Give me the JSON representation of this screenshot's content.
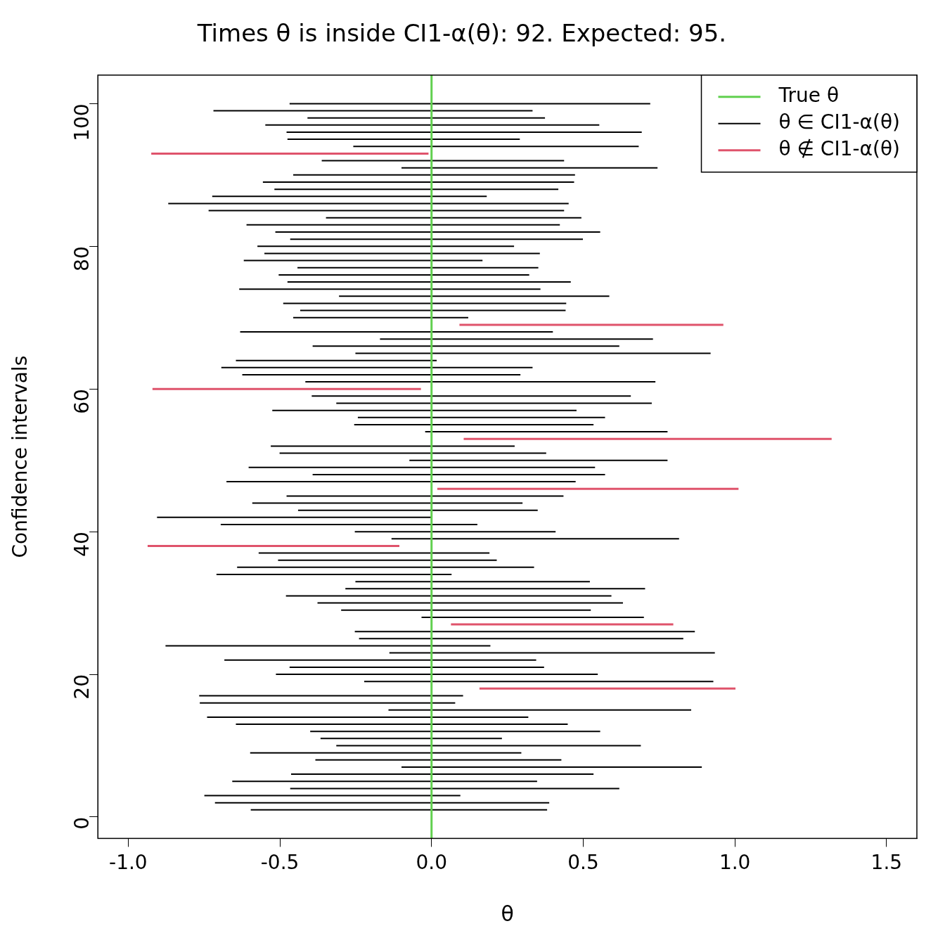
{
  "chart_data": {
    "type": "interval",
    "title": "Times θ is inside CI1-α(θ): 92. Expected: 95.",
    "x_label": "θ",
    "y_label": "Confidence intervals",
    "xlim": [
      -1.1,
      1.6
    ],
    "ylim": [
      -3,
      104
    ],
    "xticks": [
      {
        "value": -1,
        "label": "-1.0"
      },
      {
        "value": -0.5,
        "label": "-0.5"
      },
      {
        "value": 0,
        "label": "0.0"
      },
      {
        "value": 0.5,
        "label": "0.5"
      },
      {
        "value": 1,
        "label": "1.0"
      },
      {
        "value": 1.5,
        "label": "1.5"
      }
    ],
    "yticks": [
      0,
      20,
      40,
      60,
      80,
      100
    ],
    "grid": false,
    "legend": "top-right",
    "reference": {
      "name": "True θ",
      "color": "#61D04F",
      "value": 0
    },
    "series": [
      {
        "name": "θ ∈ CI1-α(θ)",
        "color": "#000000",
        "y": [
          1,
          2,
          3,
          4,
          5,
          6,
          7,
          8,
          9,
          10,
          11,
          12,
          13,
          14,
          15,
          16,
          17,
          19,
          20,
          21,
          22,
          23,
          24,
          25,
          26,
          28,
          29,
          30,
          31,
          32,
          33,
          34,
          35,
          36,
          37,
          39,
          40,
          41,
          42,
          43,
          44,
          45,
          47,
          48,
          49,
          50,
          51,
          52,
          54,
          55,
          56,
          57,
          58,
          59,
          61,
          62,
          63,
          64,
          65,
          66,
          67,
          68,
          70,
          71,
          72,
          73,
          74,
          75,
          76,
          77,
          78,
          79,
          80,
          81,
          82,
          83,
          84,
          85,
          86,
          87,
          88,
          89,
          90,
          91,
          92,
          94,
          95,
          96,
          97,
          98,
          99,
          100
        ],
        "lower": [
          -0.596,
          -0.714,
          -0.749,
          -0.466,
          -0.657,
          -0.463,
          -0.099,
          -0.383,
          -0.598,
          -0.314,
          -0.366,
          -0.4,
          -0.645,
          -0.74,
          -0.142,
          -0.764,
          -0.766,
          -0.222,
          -0.513,
          -0.468,
          -0.683,
          -0.139,
          -0.877,
          -0.239,
          -0.253,
          -0.033,
          -0.298,
          -0.376,
          -0.48,
          -0.284,
          -0.251,
          -0.709,
          -0.641,
          -0.506,
          -0.57,
          -0.132,
          -0.253,
          -0.695,
          -0.905,
          -0.44,
          -0.591,
          -0.478,
          -0.676,
          -0.392,
          -0.603,
          -0.073,
          -0.501,
          -0.53,
          -0.021,
          -0.255,
          -0.243,
          -0.525,
          -0.314,
          -0.395,
          -0.416,
          -0.624,
          -0.693,
          -0.645,
          -0.251,
          -0.392,
          -0.17,
          -0.631,
          -0.456,
          -0.433,
          -0.489,
          -0.305,
          -0.634,
          -0.475,
          -0.504,
          -0.442,
          -0.619,
          -0.551,
          -0.574,
          -0.466,
          -0.515,
          -0.61,
          -0.348,
          -0.735,
          -0.868,
          -0.723,
          -0.518,
          -0.556,
          -0.456,
          -0.099,
          -0.362,
          -0.258,
          -0.475,
          -0.478,
          -0.548,
          -0.409,
          -0.719,
          -0.468
        ],
        "upper": [
          0.381,
          0.388,
          0.095,
          0.619,
          0.348,
          0.534,
          0.891,
          0.428,
          0.296,
          0.69,
          0.232,
          0.556,
          0.449,
          0.319,
          0.856,
          0.078,
          0.104,
          0.929,
          0.548,
          0.371,
          0.345,
          0.934,
          0.194,
          0.83,
          0.868,
          0.7,
          0.525,
          0.631,
          0.593,
          0.704,
          0.522,
          0.066,
          0.338,
          0.215,
          0.191,
          0.816,
          0.409,
          0.151,
          0.002,
          0.35,
          0.3,
          0.435,
          0.475,
          0.572,
          0.539,
          0.778,
          0.378,
          0.274,
          0.778,
          0.534,
          0.572,
          0.478,
          0.726,
          0.657,
          0.738,
          0.293,
          0.333,
          0.017,
          0.92,
          0.619,
          0.73,
          0.4,
          0.121,
          0.442,
          0.444,
          0.586,
          0.359,
          0.459,
          0.322,
          0.352,
          0.168,
          0.357,
          0.272,
          0.499,
          0.556,
          0.423,
          0.494,
          0.437,
          0.452,
          0.182,
          0.418,
          0.47,
          0.473,
          0.745,
          0.437,
          0.683,
          0.291,
          0.693,
          0.553,
          0.374,
          0.333,
          0.721
        ]
      },
      {
        "name": "θ ∉ CI1-α(θ)",
        "color": "#DF536B",
        "y": [
          18,
          27,
          38,
          46,
          53,
          60,
          69,
          93
        ],
        "lower": [
          0.158,
          0.064,
          -0.936,
          0.019,
          0.106,
          -0.92,
          0.092,
          -0.924
        ],
        "upper": [
          1.002,
          0.797,
          -0.106,
          1.012,
          1.319,
          -0.035,
          0.962,
          -0.01
        ]
      }
    ]
  }
}
